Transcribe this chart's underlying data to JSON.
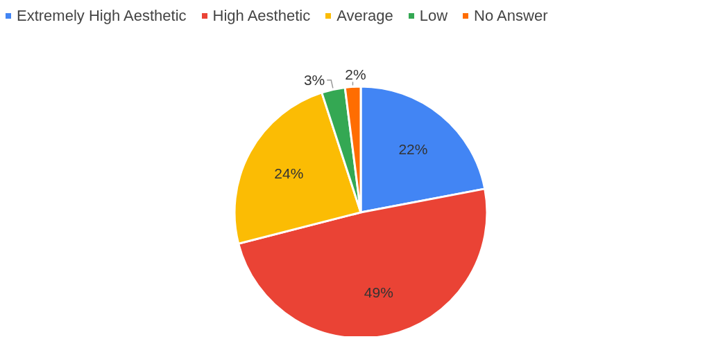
{
  "chart_data": {
    "type": "pie",
    "categories": [
      "Extremely High Aesthetic",
      "High Aesthetic",
      "Average",
      "Low",
      "No Answer"
    ],
    "values": [
      22,
      49,
      24,
      3,
      2
    ],
    "colors": [
      "#4285f4",
      "#ea4335",
      "#fbbc04",
      "#34a853",
      "#ff6d01"
    ],
    "value_labels": [
      "22%",
      "49%",
      "24%",
      "3%",
      "2%"
    ],
    "legend": "top left"
  }
}
